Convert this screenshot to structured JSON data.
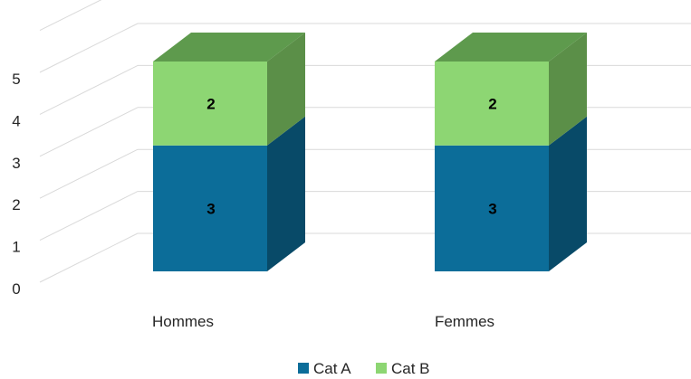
{
  "chart_data": {
    "type": "bar",
    "stacked": true,
    "three_d": true,
    "categories": [
      "Hommes",
      "Femmes"
    ],
    "series": [
      {
        "name": "Cat A",
        "values": [
          3,
          3
        ],
        "color": "#0c6d99",
        "side_color": "#084a68",
        "top_color": "#0b5f86"
      },
      {
        "name": "Cat B",
        "values": [
          2,
          2
        ],
        "color": "#8dd673",
        "side_color": "#5b8f48",
        "top_color": "#5e9a4d"
      }
    ],
    "y_ticks": [
      "0",
      "1",
      "2",
      "3",
      "4",
      "5"
    ],
    "ylim": [
      0,
      6
    ],
    "grid": true,
    "legend_position": "bottom",
    "data_labels": true
  }
}
